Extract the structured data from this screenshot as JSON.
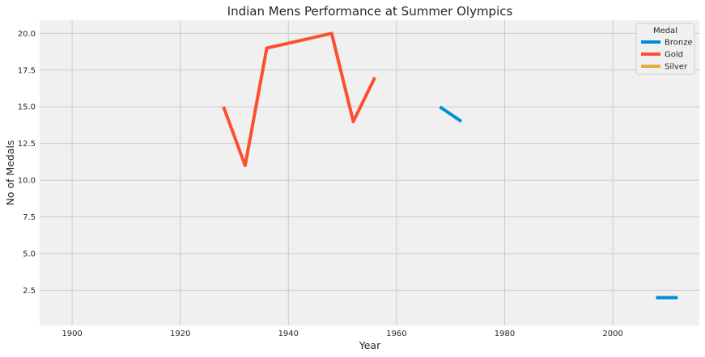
{
  "chart_data": {
    "type": "line",
    "title": "Indian Mens Performance at Summer Olympics",
    "xlabel": "Year",
    "ylabel": "No of Medals",
    "xlim": [
      1894,
      2016
    ],
    "ylim": [
      0.1,
      20.9
    ],
    "xticks": [
      1900,
      1920,
      1940,
      1960,
      1980,
      2000
    ],
    "yticks": [
      2.5,
      5.0,
      7.5,
      10.0,
      12.5,
      15.0,
      17.5,
      20.0
    ],
    "ytick_labels": [
      "2.5",
      "5.0",
      "7.5",
      "10.0",
      "12.5",
      "15.0",
      "17.5",
      "20.0"
    ],
    "grid": true,
    "legend": {
      "title": "Medal",
      "placement": "top-right"
    },
    "series": [
      {
        "name": "Bronze",
        "color": "#008fd5",
        "segments": [
          {
            "x": [
              1968,
              1972
            ],
            "y": [
              15,
              14
            ]
          },
          {
            "x": [
              2008,
              2012
            ],
            "y": [
              2,
              2
            ]
          }
        ]
      },
      {
        "name": "Gold",
        "color": "#fc4f30",
        "segments": [
          {
            "x": [
              1928,
              1932,
              1936,
              1948,
              1952,
              1956
            ],
            "y": [
              15,
              11,
              19,
              20,
              14,
              17
            ]
          }
        ]
      },
      {
        "name": "Silver",
        "color": "#e5ae38",
        "segments": []
      }
    ]
  }
}
